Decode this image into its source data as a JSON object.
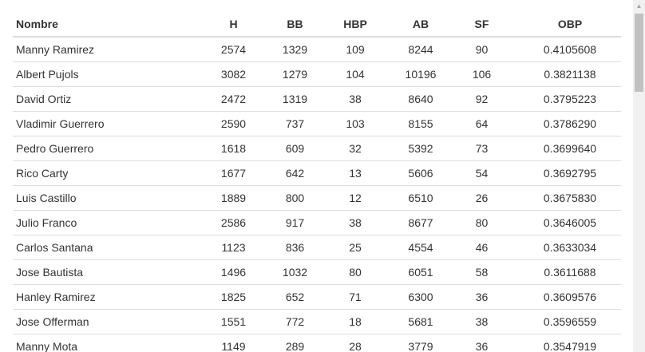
{
  "table": {
    "columns": [
      "Nombre",
      "H",
      "BB",
      "HBP",
      "AB",
      "SF",
      "OBP"
    ],
    "rows": [
      {
        "nombre": "Manny Ramirez",
        "h": "2574",
        "bb": "1329",
        "hbp": "109",
        "ab": "8244",
        "sf": "90",
        "obp": "0.4105608"
      },
      {
        "nombre": "Albert Pujols",
        "h": "3082",
        "bb": "1279",
        "hbp": "104",
        "ab": "10196",
        "sf": "106",
        "obp": "0.3821138"
      },
      {
        "nombre": "David Ortiz",
        "h": "2472",
        "bb": "1319",
        "hbp": "38",
        "ab": "8640",
        "sf": "92",
        "obp": "0.3795223"
      },
      {
        "nombre": "Vladimir Guerrero",
        "h": "2590",
        "bb": "737",
        "hbp": "103",
        "ab": "8155",
        "sf": "64",
        "obp": "0.3786290"
      },
      {
        "nombre": "Pedro Guerrero",
        "h": "1618",
        "bb": "609",
        "hbp": "32",
        "ab": "5392",
        "sf": "73",
        "obp": "0.3699640"
      },
      {
        "nombre": "Rico Carty",
        "h": "1677",
        "bb": "642",
        "hbp": "13",
        "ab": "5606",
        "sf": "54",
        "obp": "0.3692795"
      },
      {
        "nombre": "Luis Castillo",
        "h": "1889",
        "bb": "800",
        "hbp": "12",
        "ab": "6510",
        "sf": "26",
        "obp": "0.3675830"
      },
      {
        "nombre": "Julio Franco",
        "h": "2586",
        "bb": "917",
        "hbp": "38",
        "ab": "8677",
        "sf": "80",
        "obp": "0.3646005"
      },
      {
        "nombre": "Carlos Santana",
        "h": "1123",
        "bb": "836",
        "hbp": "25",
        "ab": "4554",
        "sf": "46",
        "obp": "0.3633034"
      },
      {
        "nombre": "Jose Bautista",
        "h": "1496",
        "bb": "1032",
        "hbp": "80",
        "ab": "6051",
        "sf": "58",
        "obp": "0.3611688"
      },
      {
        "nombre": "Hanley Ramirez",
        "h": "1825",
        "bb": "652",
        "hbp": "71",
        "ab": "6300",
        "sf": "36",
        "obp": "0.3609576"
      },
      {
        "nombre": "Jose Offerman",
        "h": "1551",
        "bb": "772",
        "hbp": "18",
        "ab": "5681",
        "sf": "38",
        "obp": "0.3596559"
      },
      {
        "nombre": "Manny Mota",
        "h": "1149",
        "bb": "289",
        "hbp": "28",
        "ab": "3779",
        "sf": "36",
        "obp": "0.3547919"
      }
    ]
  },
  "scrollbar": {
    "up_arrow_icon": "scroll-up-arrow-icon"
  }
}
